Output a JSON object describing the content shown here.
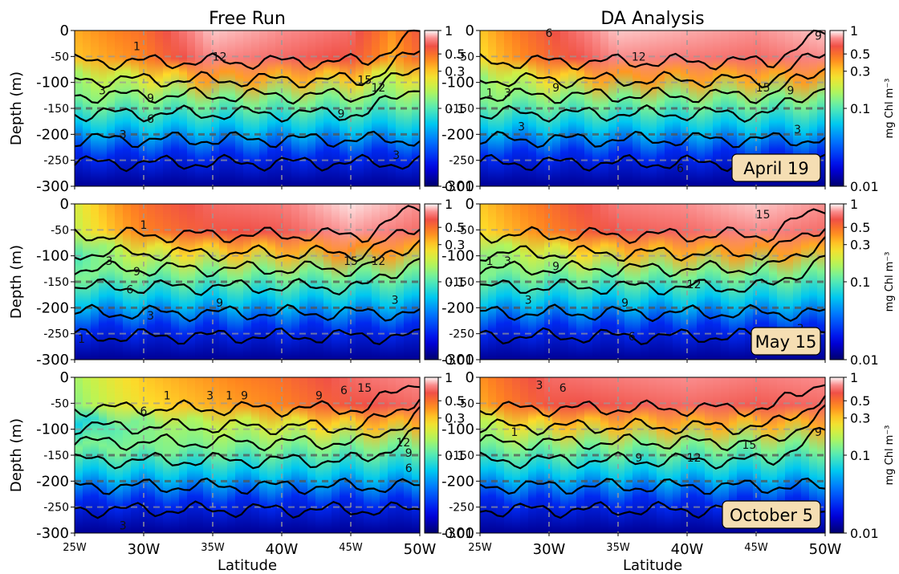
{
  "chart_data": {
    "type": "heatmap",
    "description_kind": "depth-latitude section of chlorophyll with temperature-like contours",
    "columns": [
      "Free Run",
      "DA Analysis"
    ],
    "x_tick_labels": [
      "25W",
      "30W",
      "35W",
      "40W",
      "45W",
      "50W"
    ],
    "x_ticks": [
      25,
      30,
      35,
      40,
      45,
      50
    ],
    "x_label": "Latitude",
    "xlim": [
      25,
      50
    ],
    "y_label": "Depth (m)",
    "y_tick_labels": [
      "0",
      "-50",
      "-100",
      "-150",
      "-200",
      "-250",
      "-300"
    ],
    "y_ticks": [
      0,
      -50,
      -100,
      -150,
      -200,
      -250,
      -300
    ],
    "ylim": [
      -300,
      0
    ],
    "colorbar": {
      "label": "mg Chl m⁻³",
      "tick_labels": [
        "1",
        "0.5",
        "0.3",
        "0.1",
        "0.01"
      ],
      "ticks": [
        1,
        0.5,
        0.3,
        0.1,
        0.01
      ],
      "scale": "log",
      "range": [
        0.01,
        1
      ],
      "colormap": "jet"
    },
    "dashed_reference_depths": [
      -50,
      -100,
      -150,
      -200,
      -250
    ],
    "dashed_reference_lons": [
      30,
      35,
      40,
      45
    ],
    "row_dates": [
      "April 19",
      "May 15",
      "October 5"
    ],
    "panels": [
      {
        "row": 0,
        "col": 0,
        "surface_chl_by_lon": [
          [
            25,
            0.35
          ],
          [
            30,
            0.5
          ],
          [
            35,
            0.9
          ],
          [
            40,
            0.8
          ],
          [
            45,
            0.7
          ],
          [
            48,
            0.4
          ],
          [
            50,
            0.6
          ]
        ],
        "contour_labels": [
          {
            "text": "1",
            "lon": 29.5,
            "depth": -30
          },
          {
            "text": "12",
            "lon": 35.5,
            "depth": -50
          },
          {
            "text": "3",
            "lon": 27,
            "depth": -115
          },
          {
            "text": "9",
            "lon": 30.5,
            "depth": -130
          },
          {
            "text": "15",
            "lon": 46,
            "depth": -95
          },
          {
            "text": "12",
            "lon": 47,
            "depth": -110
          },
          {
            "text": "6",
            "lon": 30.5,
            "depth": -170
          },
          {
            "text": "9",
            "lon": 44.3,
            "depth": -160
          },
          {
            "text": "3",
            "lon": 28.5,
            "depth": -200
          },
          {
            "text": "3",
            "lon": 48.3,
            "depth": -240
          }
        ]
      },
      {
        "row": 0,
        "col": 1,
        "surface_chl_by_lon": [
          [
            25,
            0.3
          ],
          [
            30,
            0.6
          ],
          [
            35,
            0.9
          ],
          [
            40,
            0.85
          ],
          [
            45,
            0.8
          ],
          [
            50,
            0.9
          ]
        ],
        "contour_labels": [
          {
            "text": "6",
            "lon": 30,
            "depth": -5
          },
          {
            "text": "12",
            "lon": 36.5,
            "depth": -50
          },
          {
            "text": "9",
            "lon": 49.5,
            "depth": -10
          },
          {
            "text": "1",
            "lon": 25.7,
            "depth": -120
          },
          {
            "text": "3",
            "lon": 27,
            "depth": -120
          },
          {
            "text": "9",
            "lon": 30.5,
            "depth": -110
          },
          {
            "text": "15",
            "lon": 45.5,
            "depth": -110
          },
          {
            "text": "9",
            "lon": 47.5,
            "depth": -115
          },
          {
            "text": "3",
            "lon": 28,
            "depth": -185
          },
          {
            "text": "3",
            "lon": 48,
            "depth": -190
          },
          {
            "text": "6",
            "lon": 39.5,
            "depth": -265
          }
        ]
      },
      {
        "row": 1,
        "col": 0,
        "surface_chl_by_lon": [
          [
            25,
            0.2
          ],
          [
            30,
            0.5
          ],
          [
            35,
            0.7
          ],
          [
            40,
            0.75
          ],
          [
            45,
            0.95
          ],
          [
            50,
            0.8
          ]
        ],
        "contour_labels": [
          {
            "text": "1",
            "lon": 30,
            "depth": -40
          },
          {
            "text": "3",
            "lon": 27.5,
            "depth": -110
          },
          {
            "text": "9",
            "lon": 29.5,
            "depth": -130
          },
          {
            "text": "15",
            "lon": 45,
            "depth": -110
          },
          {
            "text": "12",
            "lon": 47,
            "depth": -110
          },
          {
            "text": "6",
            "lon": 29,
            "depth": -165
          },
          {
            "text": "9",
            "lon": 35.5,
            "depth": -190
          },
          {
            "text": "3",
            "lon": 30.5,
            "depth": -215
          },
          {
            "text": "3",
            "lon": 48.2,
            "depth": -185
          },
          {
            "text": "1",
            "lon": 25.5,
            "depth": -260
          }
        ]
      },
      {
        "row": 1,
        "col": 1,
        "surface_chl_by_lon": [
          [
            25,
            0.3
          ],
          [
            30,
            0.5
          ],
          [
            35,
            0.75
          ],
          [
            40,
            0.8
          ],
          [
            45,
            0.9
          ],
          [
            50,
            0.8
          ]
        ],
        "contour_labels": [
          {
            "text": "15",
            "lon": 45.5,
            "depth": -20
          },
          {
            "text": "1",
            "lon": 25.7,
            "depth": -110
          },
          {
            "text": "3",
            "lon": 27,
            "depth": -110
          },
          {
            "text": "9",
            "lon": 30.5,
            "depth": -120
          },
          {
            "text": "12",
            "lon": 40.5,
            "depth": -155
          },
          {
            "text": "3",
            "lon": 28.5,
            "depth": -185
          },
          {
            "text": "9",
            "lon": 35.5,
            "depth": -190
          },
          {
            "text": "3",
            "lon": 48.2,
            "depth": -240
          },
          {
            "text": "6",
            "lon": 36,
            "depth": -255
          }
        ]
      },
      {
        "row": 2,
        "col": 0,
        "surface_chl_by_lon": [
          [
            25,
            0.15
          ],
          [
            30,
            0.3
          ],
          [
            35,
            0.4
          ],
          [
            40,
            0.5
          ],
          [
            45,
            0.7
          ],
          [
            50,
            0.8
          ]
        ],
        "contour_labels": [
          {
            "text": "1",
            "lon": 31.7,
            "depth": -35
          },
          {
            "text": "3",
            "lon": 34.8,
            "depth": -35
          },
          {
            "text": "1",
            "lon": 36.2,
            "depth": -35
          },
          {
            "text": "9",
            "lon": 37.3,
            "depth": -35
          },
          {
            "text": "9",
            "lon": 42.7,
            "depth": -35
          },
          {
            "text": "6",
            "lon": 44.5,
            "depth": -25
          },
          {
            "text": "15",
            "lon": 46,
            "depth": -20
          },
          {
            "text": "6",
            "lon": 30,
            "depth": -65
          },
          {
            "text": "12",
            "lon": 48.8,
            "depth": -125
          },
          {
            "text": "9",
            "lon": 49.2,
            "depth": -145
          },
          {
            "text": "6",
            "lon": 49.2,
            "depth": -175
          },
          {
            "text": "3",
            "lon": 28.5,
            "depth": -285
          }
        ]
      },
      {
        "row": 2,
        "col": 1,
        "surface_chl_by_lon": [
          [
            25,
            0.4
          ],
          [
            30,
            0.7
          ],
          [
            35,
            0.75
          ],
          [
            40,
            0.8
          ],
          [
            45,
            0.75
          ],
          [
            50,
            0.8
          ]
        ],
        "contour_labels": [
          {
            "text": "3",
            "lon": 29.3,
            "depth": -15
          },
          {
            "text": "6",
            "lon": 31,
            "depth": -20
          },
          {
            "text": "1",
            "lon": 27.5,
            "depth": -105
          },
          {
            "text": "15",
            "lon": 44.5,
            "depth": -130
          },
          {
            "text": "9",
            "lon": 36.5,
            "depth": -155
          },
          {
            "text": "12",
            "lon": 40.5,
            "depth": -155
          },
          {
            "text": "9",
            "lon": 49.5,
            "depth": -105
          },
          {
            "text": "3",
            "lon": 47.5,
            "depth": -250
          }
        ]
      }
    ]
  }
}
